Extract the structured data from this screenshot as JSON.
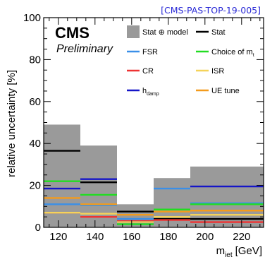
{
  "chart_data": {
    "type": "step",
    "reference": "[CMS-PAS-TOP-19-005]",
    "label_experiment": "CMS",
    "label_status": "Preliminary",
    "xlabel": "m",
    "xlabel_sub": "jet",
    "xlabel_unit": "[GeV]",
    "ylabel": "relative uncertainty [%]",
    "xlim": [
      112,
      232
    ],
    "ylim": [
      0,
      100
    ],
    "x_ticks": [
      120,
      140,
      160,
      180,
      200,
      220
    ],
    "y_ticks": [
      0,
      20,
      40,
      60,
      80,
      100
    ],
    "bin_edges": [
      112,
      132,
      152,
      172,
      192,
      232
    ],
    "band": {
      "name": "Stat ⊕ model",
      "color": "#9a9a9a",
      "values": [
        49,
        39,
        11,
        23.5,
        29
      ]
    },
    "series": [
      {
        "name": "Stat",
        "color": "#000000",
        "values": [
          36.5,
          21.5,
          7.5,
          4,
          4
        ]
      },
      {
        "name": "FSR",
        "color": "#3a8fe8",
        "values": [
          11,
          10.5,
          4,
          18.5,
          11.5
        ]
      },
      {
        "name": "CR",
        "color": "#ee3333",
        "values": [
          7,
          5,
          3,
          3.5,
          2.5
        ]
      },
      {
        "name": "h",
        "name_sub": "damp",
        "color": "#1515c8",
        "values": [
          18.5,
          23,
          2.5,
          8.5,
          19.5
        ]
      },
      {
        "name": "Choice of m",
        "name_sub": "t",
        "color": "#22dd22",
        "values": [
          22,
          15.5,
          1.5,
          8.5,
          11
        ]
      },
      {
        "name": "ISR",
        "color": "#f5d35a",
        "values": [
          7,
          6.5,
          2.5,
          5,
          6
        ]
      },
      {
        "name": "UE tune",
        "color": "#f39b1c",
        "values": [
          14,
          11,
          6,
          7.5,
          8
        ]
      }
    ]
  }
}
